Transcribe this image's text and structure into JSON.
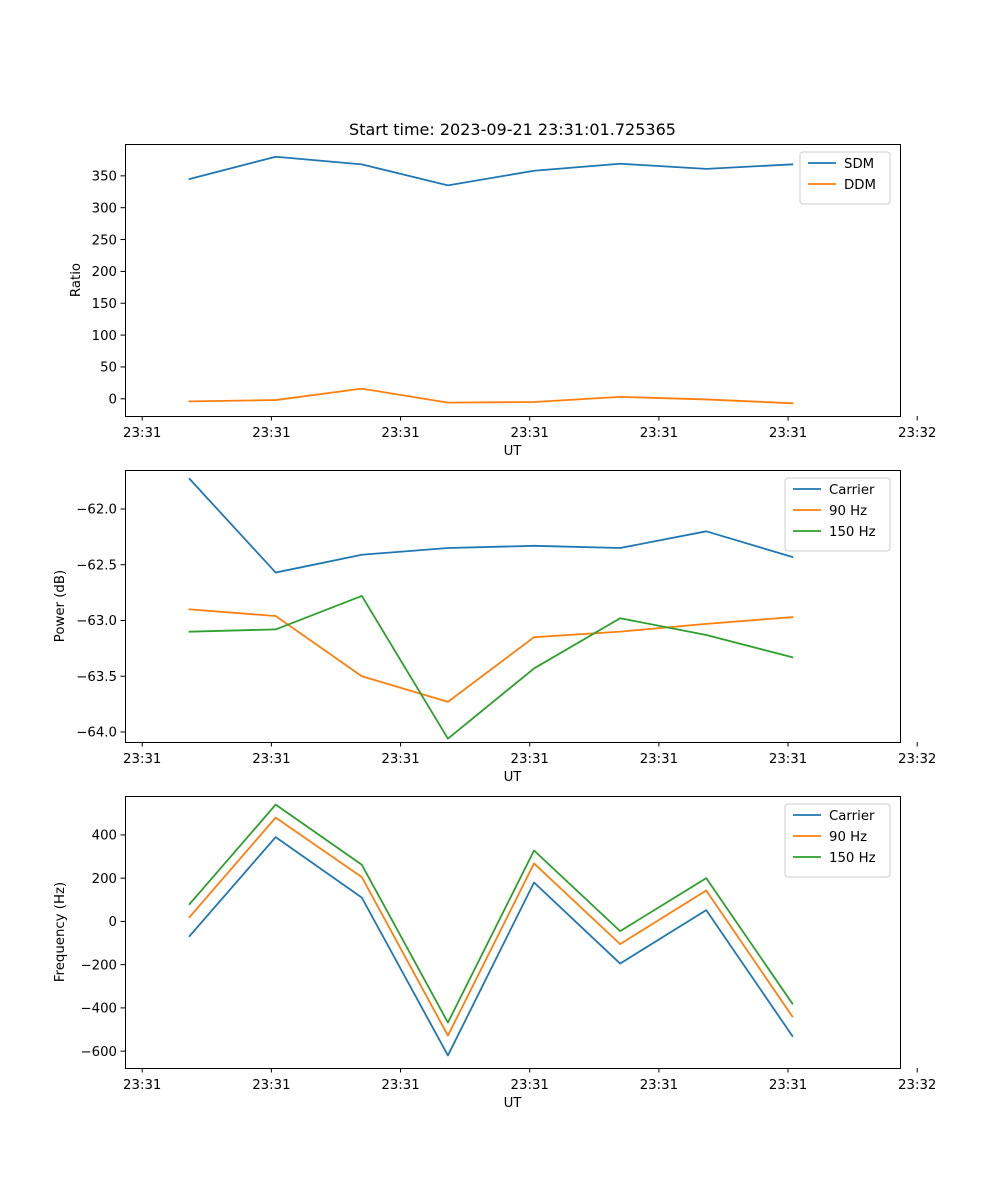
{
  "chart_data": [
    {
      "type": "line",
      "title": "Start time: 2023-09-21 23:31:01.725365",
      "xlabel": "UT",
      "ylabel": "Ratio",
      "x": [
        0,
        1,
        2,
        3,
        4,
        5,
        6,
        7
      ],
      "xlim": [
        -0.75,
        8.25
      ],
      "xticks": [
        -0.55,
        0.95,
        2.45,
        3.95,
        5.45,
        6.95,
        8.45
      ],
      "xtick_labels": [
        "23:31",
        "23:31",
        "23:31",
        "23:31",
        "23:31",
        "23:31",
        "23:32"
      ],
      "ylim": [
        -27,
        400
      ],
      "yticks": [
        0,
        50,
        100,
        150,
        200,
        250,
        300,
        350
      ],
      "ytick_labels": [
        "0",
        "50",
        "100",
        "150",
        "200",
        "250",
        "300",
        "350"
      ],
      "legend": "top-right",
      "series": [
        {
          "name": "SDM",
          "color": "#1f77b4",
          "values": [
            345,
            380,
            368,
            335,
            358,
            369,
            361,
            368
          ]
        },
        {
          "name": "DDM",
          "color": "#ff7f0e",
          "values": [
            -4,
            -2,
            16,
            -6,
            -5,
            3,
            -1,
            -7
          ]
        }
      ]
    },
    {
      "type": "line",
      "title": "",
      "xlabel": "UT",
      "ylabel": "Power (dB)",
      "x": [
        0,
        1,
        2,
        3,
        4,
        5,
        6,
        7
      ],
      "xlim": [
        -0.75,
        8.25
      ],
      "xticks": [
        -0.55,
        0.95,
        2.45,
        3.95,
        5.45,
        6.95,
        8.45
      ],
      "xtick_labels": [
        "23:31",
        "23:31",
        "23:31",
        "23:31",
        "23:31",
        "23:31",
        "23:32"
      ],
      "ylim": [
        -64.09,
        -61.65
      ],
      "yticks": [
        -64.0,
        -63.5,
        -63.0,
        -62.5,
        -62.0
      ],
      "ytick_labels": [
        "−64.0",
        "−63.5",
        "−63.0",
        "−62.5",
        "−62.0"
      ],
      "legend": "top-right",
      "series": [
        {
          "name": "Carrier",
          "color": "#1f77b4",
          "values": [
            -61.73,
            -62.57,
            -62.41,
            -62.35,
            -62.33,
            -62.35,
            -62.2,
            -62.43
          ]
        },
        {
          "name": "90 Hz",
          "color": "#ff7f0e",
          "values": [
            -62.9,
            -62.96,
            -63.5,
            -63.73,
            -63.15,
            -63.1,
            -63.03,
            -62.97
          ]
        },
        {
          "name": "150 Hz",
          "color": "#2ca02c",
          "values": [
            -63.1,
            -63.08,
            -62.78,
            -64.06,
            -63.43,
            -62.98,
            -63.13,
            -63.33
          ]
        }
      ]
    },
    {
      "type": "line",
      "title": "",
      "xlabel": "UT",
      "ylabel": "Frequency (Hz)",
      "x": [
        0,
        1,
        2,
        3,
        4,
        5,
        6,
        7
      ],
      "xlim": [
        -0.75,
        8.25
      ],
      "xticks": [
        -0.55,
        0.95,
        2.45,
        3.95,
        5.45,
        6.95,
        8.45
      ],
      "xtick_labels": [
        "23:31",
        "23:31",
        "23:31",
        "23:31",
        "23:31",
        "23:31",
        "23:32"
      ],
      "ylim": [
        -678,
        580
      ],
      "yticks": [
        -600,
        -400,
        -200,
        0,
        200,
        400
      ],
      "ytick_labels": [
        "−600",
        "−400",
        "−200",
        "0",
        "200",
        "400"
      ],
      "legend": "top-right",
      "series": [
        {
          "name": "Carrier",
          "color": "#1f77b4",
          "values": [
            -68,
            390,
            110,
            -620,
            180,
            -195,
            52,
            -530
          ]
        },
        {
          "name": "90 Hz",
          "color": "#ff7f0e",
          "values": [
            20,
            480,
            205,
            -528,
            268,
            -105,
            143,
            -440
          ]
        },
        {
          "name": "150 Hz",
          "color": "#2ca02c",
          "values": [
            80,
            540,
            262,
            -468,
            328,
            -45,
            200,
            -380
          ]
        }
      ]
    }
  ]
}
